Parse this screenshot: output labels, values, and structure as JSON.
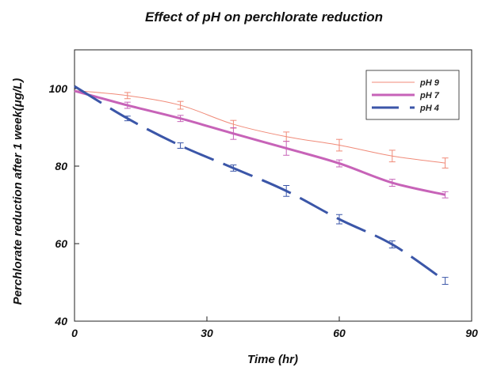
{
  "chart_data": {
    "type": "line",
    "title": "Effect of pH on perchlorate reduction",
    "xlabel": "Time (hr)",
    "ylabel": "Perchlorate reduction after 1 week(μg/L)",
    "xlim": [
      0,
      90
    ],
    "ylim": [
      40,
      110
    ],
    "xticks": [
      0,
      30,
      60,
      90
    ],
    "yticks": [
      40,
      60,
      80,
      100
    ],
    "grid": false,
    "legend_position": "top-right",
    "x": [
      0,
      12,
      24,
      36,
      48,
      60,
      72,
      84
    ],
    "series": [
      {
        "name": "pH 9",
        "color": "#f08a78",
        "style": "thin-solid",
        "values": [
          99.5,
          98.2,
          95.7,
          90.8,
          87.6,
          85.4,
          82.6,
          80.8
        ],
        "errors": [
          0.5,
          0.8,
          1.0,
          1.0,
          1.2,
          1.5,
          1.5,
          1.3
        ]
      },
      {
        "name": "pH 7",
        "color": "#c763b8",
        "style": "thick-solid",
        "values": [
          99.4,
          95.7,
          92.3,
          88.4,
          84.6,
          80.7,
          75.7,
          72.6
        ],
        "errors": [
          0.5,
          0.8,
          0.8,
          1.5,
          1.8,
          0.9,
          0.9,
          0.8
        ]
      },
      {
        "name": "pH 4",
        "color": "#3b56a8",
        "style": "thick-dashed",
        "values": [
          100.6,
          92.3,
          85.3,
          79.5,
          73.6,
          66.3,
          59.8,
          50.4
        ],
        "errors": [
          0.5,
          0.6,
          0.7,
          0.8,
          1.4,
          1.2,
          0.9,
          0.9
        ]
      }
    ]
  }
}
